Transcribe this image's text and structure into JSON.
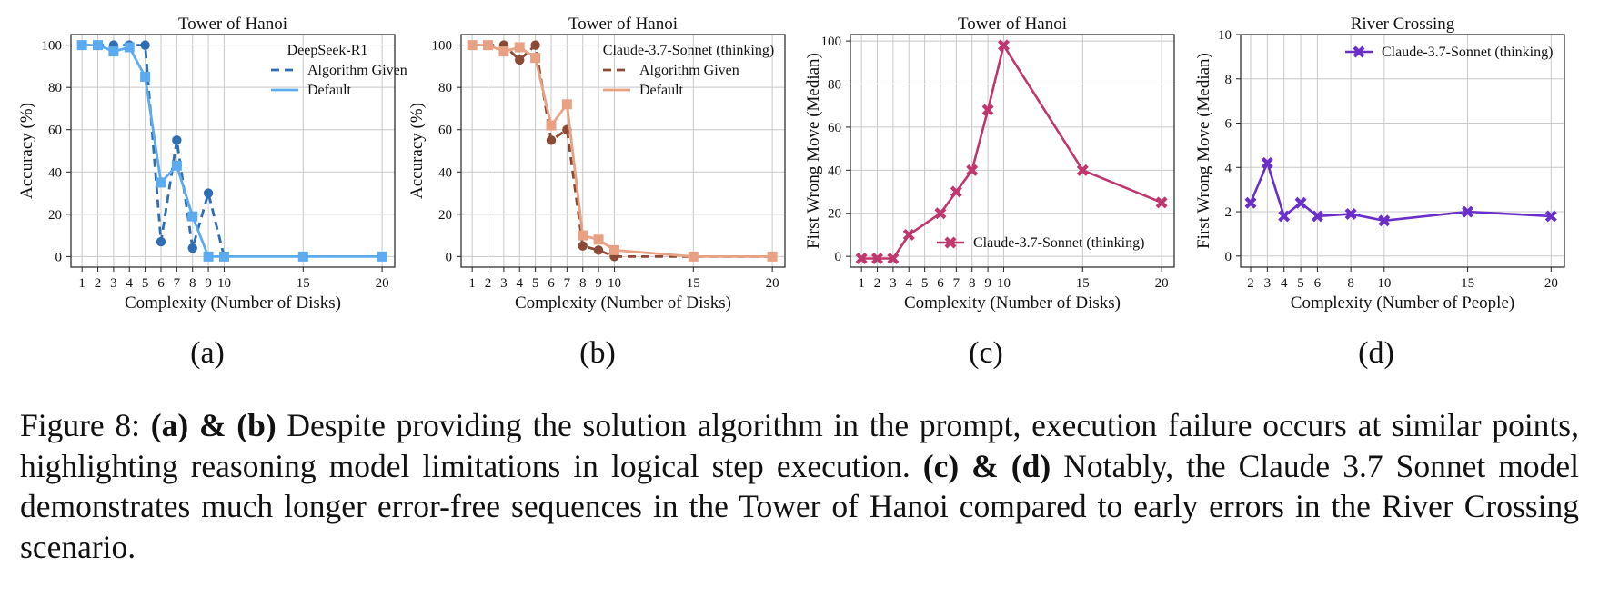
{
  "panel_labels": [
    "(a)",
    "(b)",
    "(c)",
    "(d)"
  ],
  "caption": {
    "lead": "Figure 8: ",
    "part1_bold": "(a) & (b)",
    "part1_text": " Despite providing the solution algorithm in the prompt, execution failure occurs at similar points, highlighting reasoning model limitations in logical step execution. ",
    "part2_bold": "(c) & (d)",
    "part2_text": " Notably, the Claude 3.7 Sonnet model demonstrates much longer error-free sequences in the Tower of Hanoi compared to early errors in the River Crossing scenario."
  },
  "chart_data": [
    {
      "type": "line",
      "title": "Tower of Hanoi",
      "xlabel": "Complexity (Number of Disks)",
      "ylabel": "Accuracy (%)",
      "xticks": [
        1,
        2,
        3,
        4,
        5,
        6,
        7,
        8,
        9,
        10,
        15,
        20
      ],
      "yticks": [
        0,
        20,
        40,
        60,
        80,
        100
      ],
      "xlim": [
        0.3,
        20.8
      ],
      "ylim": [
        -5,
        105
      ],
      "grid": true,
      "legend_title": "DeepSeek-R1",
      "legend_position": "top-right",
      "series": [
        {
          "name": "Algorithm Given",
          "color": "#2f6db5",
          "style": "dashed",
          "marker": "circle",
          "x": [
            1,
            2,
            3,
            4,
            5,
            6,
            7,
            8,
            9,
            10
          ],
          "y": [
            100,
            100,
            100,
            100,
            100,
            7,
            55,
            4,
            30,
            0
          ]
        },
        {
          "name": "Default",
          "color": "#5aabf0",
          "style": "solid",
          "marker": "square",
          "x": [
            1,
            2,
            3,
            4,
            5,
            6,
            7,
            8,
            9,
            10,
            15,
            20
          ],
          "y": [
            100,
            100,
            97,
            99,
            85,
            35,
            43,
            19,
            0,
            0,
            0,
            0
          ]
        }
      ]
    },
    {
      "type": "line",
      "title": "Tower of Hanoi",
      "xlabel": "Complexity (Number of Disks)",
      "ylabel": "Accuracy (%)",
      "xticks": [
        1,
        2,
        3,
        4,
        5,
        6,
        7,
        8,
        9,
        10,
        15,
        20
      ],
      "yticks": [
        0,
        20,
        40,
        60,
        80,
        100
      ],
      "xlim": [
        0.3,
        20.8
      ],
      "ylim": [
        -5,
        105
      ],
      "grid": true,
      "legend_title": "Claude-3.7-Sonnet (thinking)",
      "legend_position": "top-right",
      "series": [
        {
          "name": "Algorithm Given",
          "color": "#8b4a35",
          "style": "dashed",
          "marker": "circle",
          "x": [
            1,
            2,
            3,
            4,
            5,
            6,
            7,
            8,
            9,
            10,
            15,
            20
          ],
          "y": [
            100,
            100,
            100,
            93,
            100,
            55,
            60,
            5,
            3,
            0,
            0,
            0
          ]
        },
        {
          "name": "Default",
          "color": "#e8a283",
          "style": "solid",
          "marker": "square",
          "x": [
            1,
            2,
            3,
            4,
            5,
            6,
            7,
            8,
            9,
            10,
            15,
            20
          ],
          "y": [
            100,
            100,
            97,
            99,
            94,
            62,
            72,
            10,
            8,
            3,
            0,
            0
          ]
        }
      ]
    },
    {
      "type": "line",
      "title": "Tower of Hanoi",
      "xlabel": "Complexity (Number of Disks)",
      "ylabel": "First Wrong Move (Median)",
      "xticks": [
        1,
        2,
        3,
        4,
        5,
        6,
        7,
        8,
        9,
        10,
        15,
        20
      ],
      "yticks": [
        0,
        20,
        40,
        60,
        80,
        100
      ],
      "xlim": [
        0.3,
        20.8
      ],
      "ylim": [
        -5,
        103
      ],
      "grid": true,
      "legend_title": "",
      "legend_position": "bottom-right",
      "series": [
        {
          "name": "Claude-3.7-Sonnet (thinking)",
          "color": "#c0366e",
          "style": "solid",
          "marker": "x",
          "x": [
            1,
            2,
            3,
            4,
            6,
            7,
            8,
            9,
            10,
            15,
            20
          ],
          "y": [
            -1,
            -1,
            -1,
            10,
            20,
            30,
            40,
            68,
            98,
            40,
            25
          ]
        }
      ]
    },
    {
      "type": "line",
      "title": "River Crossing",
      "xlabel": "Complexity (Number of People)",
      "ylabel": "First Wrong Move (Median)",
      "xticks": [
        2,
        3,
        4,
        5,
        6,
        8,
        10,
        15,
        20
      ],
      "yticks": [
        0,
        2,
        4,
        6,
        8,
        10
      ],
      "xlim": [
        1.4,
        20.8
      ],
      "ylim": [
        -0.5,
        10
      ],
      "grid": true,
      "legend_title": "",
      "legend_position": "top-right",
      "series": [
        {
          "name": "Claude-3.7-Sonnet (thinking)",
          "color": "#6a2fc8",
          "style": "solid",
          "marker": "x",
          "x": [
            2,
            3,
            4,
            5,
            6,
            8,
            10,
            15,
            20
          ],
          "y": [
            2.4,
            4.2,
            1.8,
            2.4,
            1.8,
            1.9,
            1.6,
            2.0,
            1.8
          ]
        }
      ]
    }
  ]
}
